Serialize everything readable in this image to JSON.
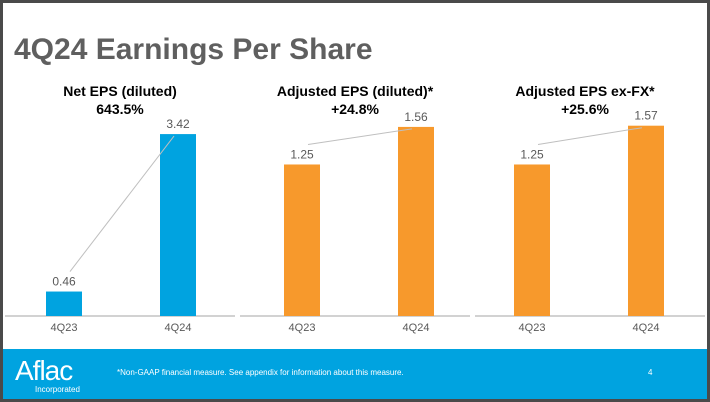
{
  "title": "4Q24 Earnings Per Share",
  "footer": {
    "logo": "Aflac",
    "logo_sub": "Incorporated",
    "note": "*Non-GAAP financial measure. See appendix for information about this measure.",
    "page": "4"
  },
  "chart_data": [
    {
      "type": "bar",
      "title": "Net EPS (diluted)",
      "change": "643.5%",
      "categories": [
        "4Q23",
        "4Q24"
      ],
      "values": [
        0.46,
        3.42
      ],
      "labels": [
        "0.46",
        "3.42"
      ],
      "color": "#00a3e0",
      "ylim": [
        0,
        3.76
      ]
    },
    {
      "type": "bar",
      "title": "Adjusted EPS (diluted)*",
      "change": "+24.8%",
      "categories": [
        "4Q23",
        "4Q24"
      ],
      "values": [
        1.25,
        1.56
      ],
      "labels": [
        "1.25",
        "1.56"
      ],
      "color": "#f7992c",
      "ylim": [
        0,
        1.65
      ]
    },
    {
      "type": "bar",
      "title": "Adjusted EPS ex-FX*",
      "change": "+25.6%",
      "categories": [
        "4Q23",
        "4Q24"
      ],
      "values": [
        1.25,
        1.57
      ],
      "labels": [
        "1.25",
        "1.57"
      ],
      "color": "#f7992c",
      "ylim": [
        0,
        1.65
      ]
    }
  ]
}
